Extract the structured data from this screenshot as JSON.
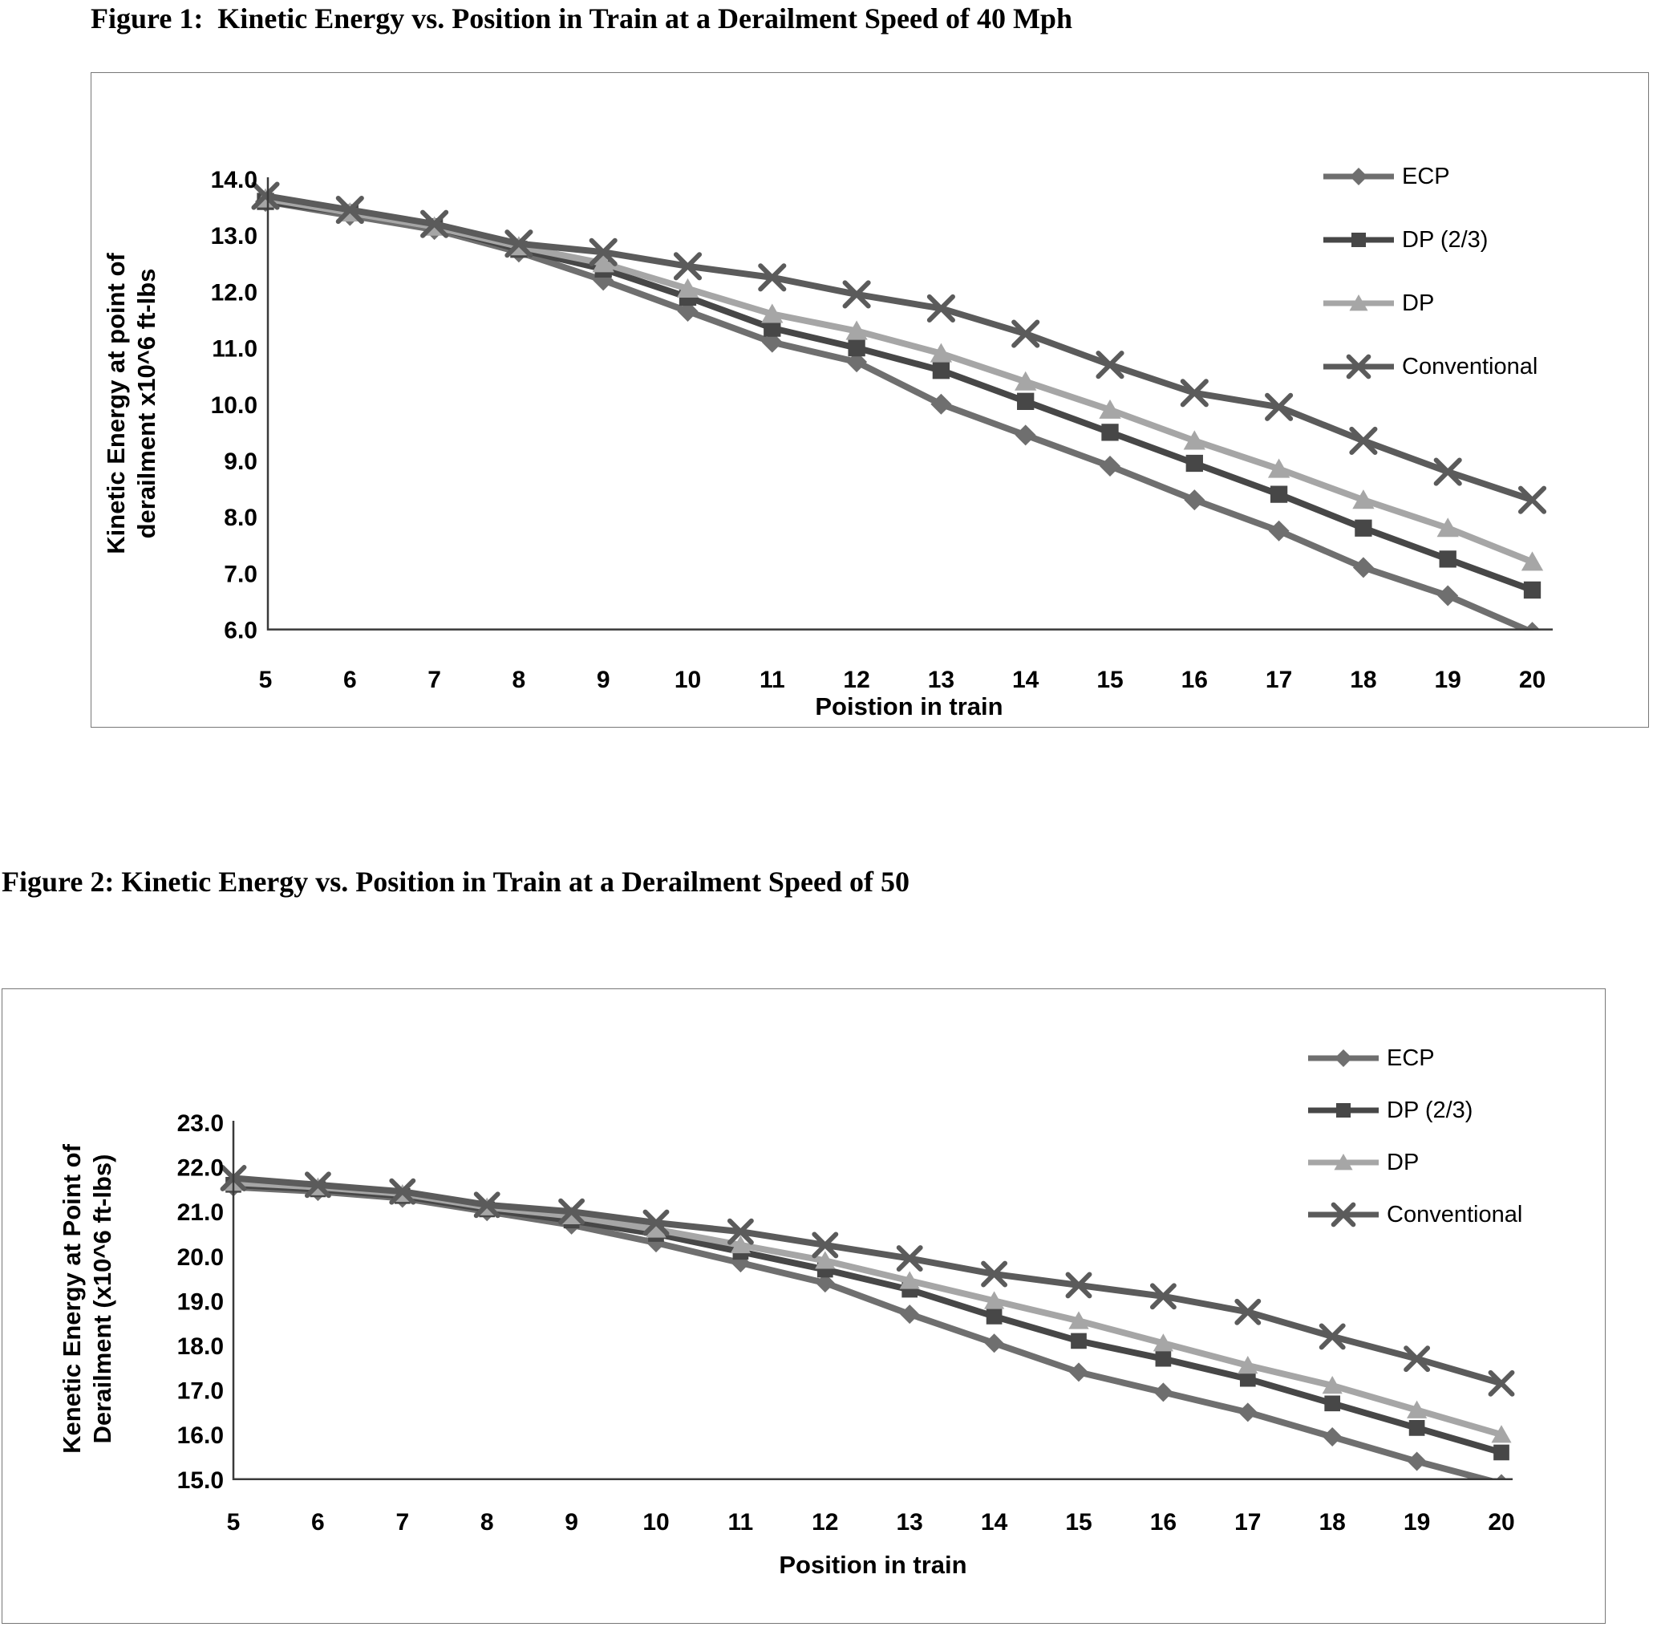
{
  "page": {
    "background": "#ffffff"
  },
  "figure1": {
    "title": "Figure 1:  Kinetic Energy vs. Position in Train at a Derailment Speed of 40 Mph",
    "chart_data": {
      "type": "line",
      "title": "Figure 1: Kinetic Energy vs. Position in Train at a Derailment Speed of 40 Mph",
      "xlabel": "Poistion in train",
      "ylabel_lines": [
        "Kinetic Energy at point of",
        "derailment  x10^6 ft-lbs"
      ],
      "x": [
        5,
        6,
        7,
        8,
        9,
        10,
        11,
        12,
        13,
        14,
        15,
        16,
        17,
        18,
        19,
        20
      ],
      "xlim": [
        5,
        20
      ],
      "ylim": [
        6.0,
        14.0
      ],
      "ytick_labels": [
        "14.0",
        "13.0",
        "12.0",
        "11.0",
        "10.0",
        "9.0",
        "8.0",
        "7.0",
        "6.0"
      ],
      "grid": false,
      "legend_position": "right",
      "axis_color": "#3a3a3a",
      "series": [
        {
          "name": "ECP",
          "marker": "diamond",
          "color": "#6f6f6f",
          "values": [
            13.6,
            13.35,
            13.1,
            12.7,
            12.2,
            11.65,
            11.1,
            10.75,
            10.0,
            9.45,
            8.9,
            8.3,
            7.75,
            7.1,
            6.6,
            5.95
          ]
        },
        {
          "name": "DP (2/3)",
          "marker": "square",
          "color": "#474747",
          "values": [
            13.6,
            13.4,
            13.15,
            12.75,
            12.4,
            11.9,
            11.35,
            11.0,
            10.6,
            10.05,
            9.5,
            8.95,
            8.4,
            7.8,
            7.25,
            6.7
          ]
        },
        {
          "name": "DP",
          "marker": "triangle",
          "color": "#a6a6a6",
          "values": [
            13.65,
            13.4,
            13.15,
            12.8,
            12.5,
            12.05,
            11.6,
            11.3,
            10.9,
            10.4,
            9.9,
            9.35,
            8.85,
            8.3,
            7.8,
            7.2
          ]
        },
        {
          "name": "Conventional",
          "marker": "x",
          "color": "#5b5b5b",
          "values": [
            13.7,
            13.45,
            13.2,
            12.85,
            12.7,
            12.45,
            12.25,
            11.95,
            11.7,
            11.25,
            10.7,
            10.2,
            9.95,
            9.35,
            8.8,
            8.3
          ]
        }
      ]
    }
  },
  "figure2": {
    "title": "Figure 2: Kinetic Energy vs. Position in Train at a Derailment Speed of 50",
    "chart_data": {
      "type": "line",
      "title": "Figure 2: Kinetic Energy vs. Position in Train at a Derailment Speed of 50",
      "xlabel": "Position in train",
      "ylabel_lines": [
        "Kenetic Energy at Point of",
        "Derailment (x10^6 ft-lbs)"
      ],
      "x": [
        5,
        6,
        7,
        8,
        9,
        10,
        11,
        12,
        13,
        14,
        15,
        16,
        17,
        18,
        19,
        20
      ],
      "xlim": [
        5,
        20
      ],
      "ylim": [
        15.0,
        23.0
      ],
      "ytick_labels": [
        "23.0",
        "22.0",
        "21.0",
        "20.0",
        "19.0",
        "18.0",
        "17.0",
        "16.0",
        "15.0"
      ],
      "grid": false,
      "legend_position": "right",
      "axis_color": "#3a3a3a",
      "series": [
        {
          "name": "ECP",
          "marker": "diamond",
          "color": "#6f6f6f",
          "values": [
            21.55,
            21.45,
            21.3,
            21.0,
            20.7,
            20.3,
            19.85,
            19.4,
            18.7,
            18.05,
            17.4,
            16.95,
            16.5,
            15.95,
            15.4,
            14.9
          ]
        },
        {
          "name": "DP (2/3)",
          "marker": "square",
          "color": "#474747",
          "values": [
            21.6,
            21.5,
            21.35,
            21.05,
            20.8,
            20.5,
            20.1,
            19.7,
            19.25,
            18.65,
            18.1,
            17.7,
            17.25,
            16.7,
            16.15,
            15.6
          ]
        },
        {
          "name": "DP",
          "marker": "triangle",
          "color": "#a6a6a6",
          "values": [
            21.65,
            21.55,
            21.4,
            21.1,
            20.9,
            20.6,
            20.25,
            19.9,
            19.45,
            19.0,
            18.55,
            18.05,
            17.55,
            17.1,
            16.55,
            16.0
          ]
        },
        {
          "name": "Conventional",
          "marker": "x",
          "color": "#5b5b5b",
          "values": [
            21.75,
            21.6,
            21.45,
            21.15,
            21.0,
            20.75,
            20.55,
            20.25,
            19.95,
            19.6,
            19.35,
            19.1,
            18.75,
            18.2,
            17.7,
            17.15
          ]
        }
      ]
    }
  }
}
